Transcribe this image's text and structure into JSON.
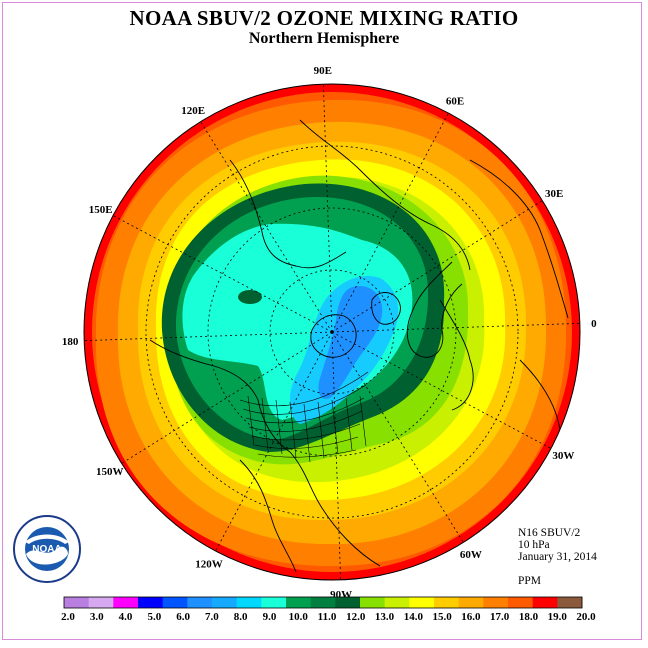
{
  "title": "NOAA SBUV/2 OZONE MIXING RATIO",
  "subtitle": "Northern Hemisphere",
  "info": {
    "satellite": "N16 SBUV/2",
    "pressure": "10 hPa",
    "date": "January 31, 2014",
    "units": "PPM"
  },
  "logo": {
    "text": "NOAA",
    "ring_text": "NATIONAL OCEANIC AND ATMOSPHERIC ADMINISTRATION · U.S. DEPARTMENT OF COMMERCE"
  },
  "longitudes": [
    {
      "label": "90E",
      "deg": 90
    },
    {
      "label": "60E",
      "deg": 60
    },
    {
      "label": "30E",
      "deg": 30
    },
    {
      "label": "0",
      "deg": 0
    },
    {
      "label": "30W",
      "deg": -30
    },
    {
      "label": "60W",
      "deg": -60
    },
    {
      "label": "90W",
      "deg": -90
    },
    {
      "label": "120W",
      "deg": -120
    },
    {
      "label": "150W",
      "deg": -150
    },
    {
      "label": "180",
      "deg": 180
    },
    {
      "label": "150E",
      "deg": 150
    },
    {
      "label": "120E",
      "deg": 120
    }
  ],
  "legend": {
    "ticks": [
      "2.0",
      "3.0",
      "4.0",
      "5.0",
      "6.0",
      "7.0",
      "8.0",
      "9.0",
      "10.0",
      "11.0",
      "12.0",
      "13.0",
      "14.0",
      "15.0",
      "16.0",
      "17.0",
      "18.0",
      "19.0",
      "20.0"
    ],
    "colors": [
      "#b97fe0",
      "#d6a8f0",
      "#ff00ff",
      "#0000ff",
      "#0055ff",
      "#1e90ff",
      "#16aaff",
      "#00d8ff",
      "#19ffd8",
      "#00a050",
      "#008040",
      "#006030",
      "#88e000",
      "#c8f000",
      "#ffff00",
      "#ffcc00",
      "#ffaa00",
      "#ff8000",
      "#ff5a00",
      "#ff0000",
      "#8b5a3c"
    ]
  },
  "colors": {
    "c20": "#ff0000",
    "c19": "#ff5a00",
    "c18": "#ff8000",
    "c17": "#ffaa00",
    "c16": "#ffcc00",
    "c15": "#ffff00",
    "c14": "#c8f000",
    "c13": "#88e000",
    "c12": "#006030",
    "c11": "#00a050",
    "c10": "#19ffd8",
    "c9": "#16ccff",
    "c8": "#1e90ff"
  }
}
